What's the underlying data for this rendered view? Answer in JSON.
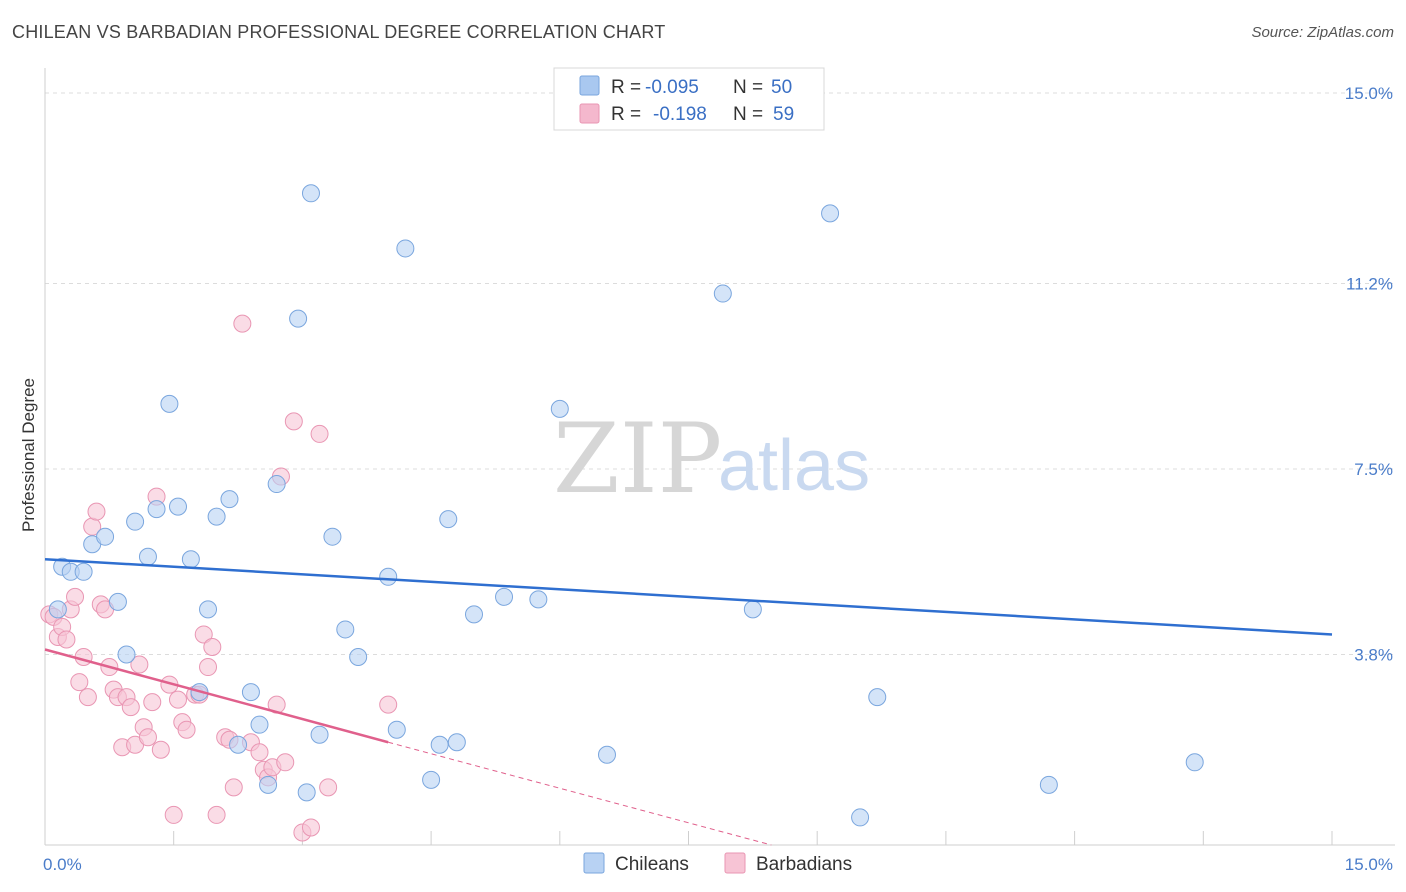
{
  "title": "CHILEAN VS BARBADIAN PROFESSIONAL DEGREE CORRELATION CHART",
  "source": "Source: ZipAtlas.com",
  "watermark": {
    "zip": "ZIP",
    "atlas": "atlas"
  },
  "legend": {
    "rows": [
      {
        "r_label": "R =",
        "r_value": "-0.095",
        "n_label": "N =",
        "n_value": "50",
        "color": "#a9c8f0"
      },
      {
        "r_label": "R =",
        "r_value": "-0.198",
        "n_label": "N =",
        "n_value": "59",
        "color": "#f4b8cd"
      }
    ]
  },
  "colors": {
    "chileans_fill": "#b8d2f3",
    "chileans_stroke": "#7aa6de",
    "chileans_line": "#2f6fd0",
    "barbadians_fill": "#f7c4d5",
    "barbadians_stroke": "#e996b3",
    "barbadians_line": "#e0608c",
    "grid": "#dcdcdc"
  },
  "chart_data": {
    "type": "scatter",
    "xlabel": "",
    "ylabel": "Professional Degree",
    "xlim": [
      0,
      15
    ],
    "ylim": [
      0,
      15.3
    ],
    "x_tick_labels": [
      {
        "v": 0,
        "t": "0.0%"
      },
      {
        "v": 15,
        "t": "15.0%"
      }
    ],
    "y_tick_labels": [
      {
        "v": 3.8,
        "t": "3.8%"
      },
      {
        "v": 7.5,
        "t": "7.5%"
      },
      {
        "v": 11.2,
        "t": "11.2%"
      },
      {
        "v": 15.0,
        "t": "15.0%"
      }
    ],
    "legend_position": "bottom-center",
    "grid": true,
    "series": [
      {
        "name": "Chileans",
        "trend": [
          [
            0,
            5.7
          ],
          [
            15,
            4.2
          ]
        ],
        "points": [
          [
            0.15,
            4.7
          ],
          [
            0.2,
            5.55
          ],
          [
            0.3,
            5.45
          ],
          [
            0.45,
            5.45
          ],
          [
            0.55,
            6.0
          ],
          [
            0.7,
            6.15
          ],
          [
            0.85,
            4.85
          ],
          [
            0.95,
            3.8
          ],
          [
            1.05,
            6.45
          ],
          [
            1.2,
            5.75
          ],
          [
            1.3,
            6.7
          ],
          [
            1.45,
            8.8
          ],
          [
            1.55,
            6.75
          ],
          [
            1.7,
            5.7
          ],
          [
            1.8,
            3.05
          ],
          [
            1.9,
            4.7
          ],
          [
            2.0,
            6.55
          ],
          [
            2.15,
            6.9
          ],
          [
            2.25,
            2.0
          ],
          [
            2.4,
            3.05
          ],
          [
            2.5,
            2.4
          ],
          [
            2.6,
            1.2
          ],
          [
            2.7,
            7.2
          ],
          [
            2.95,
            10.5
          ],
          [
            3.05,
            1.05
          ],
          [
            3.1,
            13.0
          ],
          [
            3.2,
            2.2
          ],
          [
            3.35,
            6.15
          ],
          [
            3.5,
            4.3
          ],
          [
            3.65,
            3.75
          ],
          [
            4.0,
            5.35
          ],
          [
            4.1,
            2.3
          ],
          [
            4.2,
            11.9
          ],
          [
            4.5,
            1.3
          ],
          [
            4.6,
            2.0
          ],
          [
            4.7,
            6.5
          ],
          [
            4.8,
            2.05
          ],
          [
            5.0,
            4.6
          ],
          [
            5.35,
            4.95
          ],
          [
            5.75,
            4.9
          ],
          [
            6.0,
            8.7
          ],
          [
            6.55,
            1.8
          ],
          [
            7.9,
            11.0
          ],
          [
            8.25,
            4.7
          ],
          [
            9.15,
            12.6
          ],
          [
            9.5,
            0.55
          ],
          [
            9.7,
            2.95
          ],
          [
            11.7,
            1.2
          ],
          [
            13.4,
            1.65
          ]
        ]
      },
      {
        "name": "Barbadians",
        "trend": [
          [
            0,
            3.9
          ],
          [
            4.0,
            2.05
          ]
        ],
        "trend_dashed": [
          [
            4.0,
            2.05
          ],
          [
            15,
            -3.0
          ]
        ],
        "points": [
          [
            0.05,
            4.6
          ],
          [
            0.1,
            4.55
          ],
          [
            0.15,
            4.15
          ],
          [
            0.2,
            4.35
          ],
          [
            0.25,
            4.1
          ],
          [
            0.3,
            4.7
          ],
          [
            0.35,
            4.95
          ],
          [
            0.4,
            3.25
          ],
          [
            0.45,
            3.75
          ],
          [
            0.5,
            2.95
          ],
          [
            0.55,
            6.35
          ],
          [
            0.6,
            6.65
          ],
          [
            0.65,
            4.8
          ],
          [
            0.7,
            4.7
          ],
          [
            0.75,
            3.55
          ],
          [
            0.8,
            3.1
          ],
          [
            0.85,
            2.95
          ],
          [
            0.9,
            1.95
          ],
          [
            0.95,
            2.95
          ],
          [
            1.0,
            2.75
          ],
          [
            1.05,
            2.0
          ],
          [
            1.1,
            3.6
          ],
          [
            1.15,
            2.35
          ],
          [
            1.2,
            2.15
          ],
          [
            1.25,
            2.85
          ],
          [
            1.3,
            6.95
          ],
          [
            1.35,
            1.9
          ],
          [
            1.45,
            3.2
          ],
          [
            1.5,
            0.6
          ],
          [
            1.55,
            2.9
          ],
          [
            1.6,
            2.45
          ],
          [
            1.65,
            2.3
          ],
          [
            1.75,
            3.0
          ],
          [
            1.8,
            3.0
          ],
          [
            1.85,
            4.2
          ],
          [
            1.9,
            3.55
          ],
          [
            1.95,
            3.95
          ],
          [
            2.0,
            0.6
          ],
          [
            2.1,
            2.15
          ],
          [
            2.15,
            2.1
          ],
          [
            2.2,
            1.15
          ],
          [
            2.3,
            10.4
          ],
          [
            2.4,
            2.05
          ],
          [
            2.5,
            1.85
          ],
          [
            2.55,
            1.5
          ],
          [
            2.6,
            1.35
          ],
          [
            2.65,
            1.55
          ],
          [
            2.7,
            2.8
          ],
          [
            2.75,
            7.35
          ],
          [
            2.8,
            1.65
          ],
          [
            2.9,
            8.45
          ],
          [
            3.0,
            0.25
          ],
          [
            3.1,
            0.35
          ],
          [
            3.2,
            8.2
          ],
          [
            3.3,
            1.15
          ],
          [
            4.0,
            2.8
          ]
        ]
      }
    ]
  },
  "bottom_legend": [
    {
      "label": "Chileans",
      "color": "#b8d2f3",
      "stroke": "#7aa6de"
    },
    {
      "label": "Barbadians",
      "color": "#f7c4d5",
      "stroke": "#e996b3"
    }
  ]
}
